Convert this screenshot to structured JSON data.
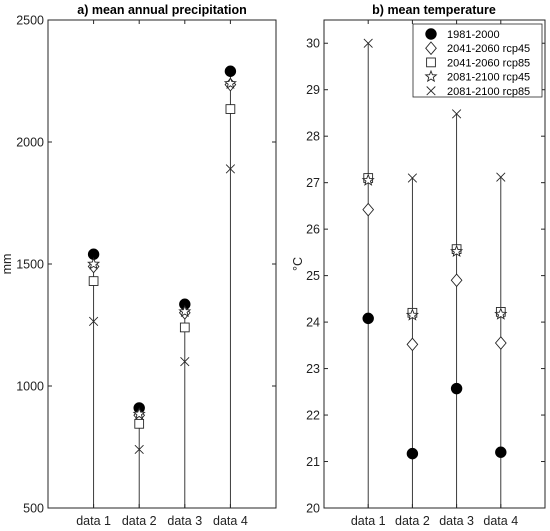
{
  "chart_data": [
    {
      "type": "scatter",
      "title": "a) mean annual precipitation",
      "xlabel": "",
      "ylabel": "mm",
      "categories": [
        "data 1",
        "data 2",
        "data 3",
        "data 4"
      ],
      "ylim": [
        500,
        2500
      ],
      "yticks": [
        500,
        1000,
        1500,
        2000,
        2500
      ],
      "grid": false,
      "series": [
        {
          "name": "1981-2000",
          "marker": "filled-circle",
          "values": [
            1540,
            910,
            1335,
            2290
          ]
        },
        {
          "name": "2041-2060 rcp45",
          "marker": "diamond",
          "values": [
            1490,
            880,
            1300,
            2235
          ]
        },
        {
          "name": "2041-2060 rcp85",
          "marker": "square",
          "values": [
            1430,
            845,
            1240,
            2135
          ]
        },
        {
          "name": "2081-2100 rcp45",
          "marker": "star",
          "values": [
            1500,
            885,
            1305,
            2240
          ]
        },
        {
          "name": "2081-2100 rcp85",
          "marker": "x",
          "values": [
            1265,
            740,
            1100,
            1890
          ]
        }
      ]
    },
    {
      "type": "scatter",
      "title": "b) mean temperature",
      "xlabel": "",
      "ylabel": "°C",
      "categories": [
        "data 1",
        "data 2",
        "data 3",
        "data 4"
      ],
      "ylim": [
        20,
        30.5
      ],
      "yticks": [
        20,
        21,
        22,
        23,
        24,
        25,
        26,
        27,
        28,
        29,
        30
      ],
      "grid": false,
      "legend_position": "top-right",
      "series": [
        {
          "name": "1981-2000",
          "marker": "filled-circle",
          "values": [
            24.08,
            21.17,
            22.57,
            21.2
          ]
        },
        {
          "name": "2041-2060 rcp45",
          "marker": "diamond",
          "values": [
            26.42,
            23.52,
            24.9,
            23.55
          ]
        },
        {
          "name": "2041-2060 rcp85",
          "marker": "square",
          "values": [
            27.1,
            24.2,
            25.57,
            24.22
          ]
        },
        {
          "name": "2081-2100 rcp45",
          "marker": "star",
          "values": [
            27.05,
            24.15,
            25.52,
            24.17
          ]
        },
        {
          "name": "2081-2100 rcp85",
          "marker": "x",
          "values": [
            30.0,
            27.1,
            28.48,
            27.12
          ]
        }
      ]
    }
  ],
  "colors": {
    "marker": "#262626",
    "filled": "#000000",
    "background": "#ffffff"
  }
}
